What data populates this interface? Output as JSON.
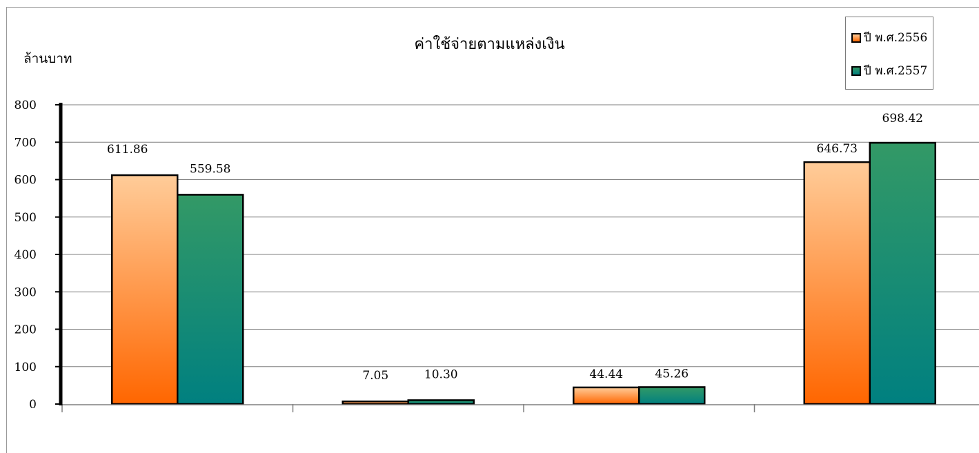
{
  "chart_data": {
    "type": "bar",
    "title": "ค่าใช้จ่ายตามแหล่งเงิน",
    "ylabel": "ล้านบาท",
    "xlabel": "",
    "categories": [
      "",
      "",
      "",
      ""
    ],
    "ylim": [
      0,
      800
    ],
    "yticks": [
      0,
      100,
      200,
      300,
      400,
      500,
      600,
      700,
      800
    ],
    "grid": true,
    "legend_position": "top-right",
    "series": [
      {
        "name": "ปี พ.ศ.2556",
        "values": [
          611.86,
          7.05,
          44.44,
          646.73
        ],
        "labels": [
          "611.86",
          "7.05",
          "44.44",
          "646.73"
        ],
        "color_top": "#ffcc99",
        "color_bottom": "#ff6600"
      },
      {
        "name": "ปี พ.ศ.2557",
        "values": [
          559.58,
          10.3,
          45.26,
          698.42
        ],
        "labels": [
          "559.58",
          "10.30",
          "45.26",
          "698.42"
        ],
        "color_top": "#339966",
        "color_bottom": "#008080"
      }
    ]
  }
}
